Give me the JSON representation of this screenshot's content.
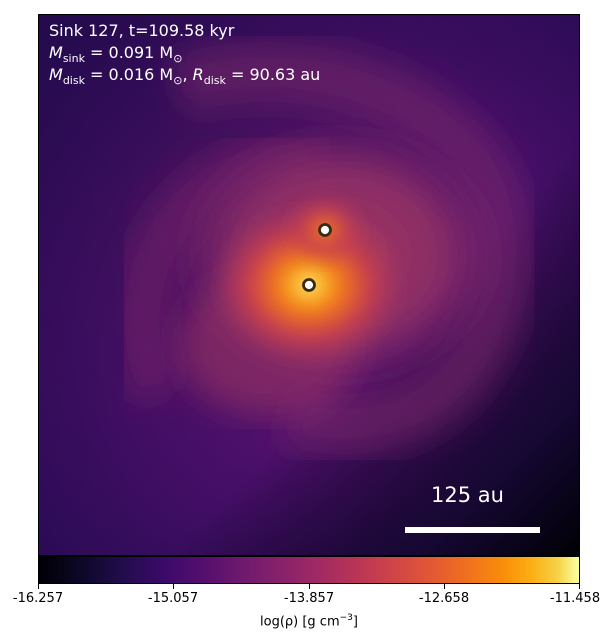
{
  "figure": {
    "info": {
      "line1": "Sink 127, t=109.58 kyr",
      "m_sink_symbol": "M",
      "m_sink_sub": "sink",
      "m_sink_value": " = 0.091 M",
      "m_sink_unit_sub": "⊙",
      "m_disk_symbol": "M",
      "m_disk_sub": "disk",
      "m_disk_value": " = 0.016 M",
      "m_disk_unit_sub": "⊙",
      "r_disk_sep": ", ",
      "r_disk_symbol": "R",
      "r_disk_sub": "disk",
      "r_disk_value": " = 90.63 au"
    },
    "scalebar_label": "125 au",
    "colorbar": {
      "ticks": [
        "-16.257",
        "-15.057",
        "-13.857",
        "-12.658",
        "-11.458"
      ],
      "label_prefix": "log(ρ) [g cm",
      "label_exp": "−3",
      "label_suffix": "]",
      "colormap": "inferno"
    },
    "sinks": [
      {
        "name": "sink-upper"
      },
      {
        "name": "sink-lower"
      }
    ]
  }
}
